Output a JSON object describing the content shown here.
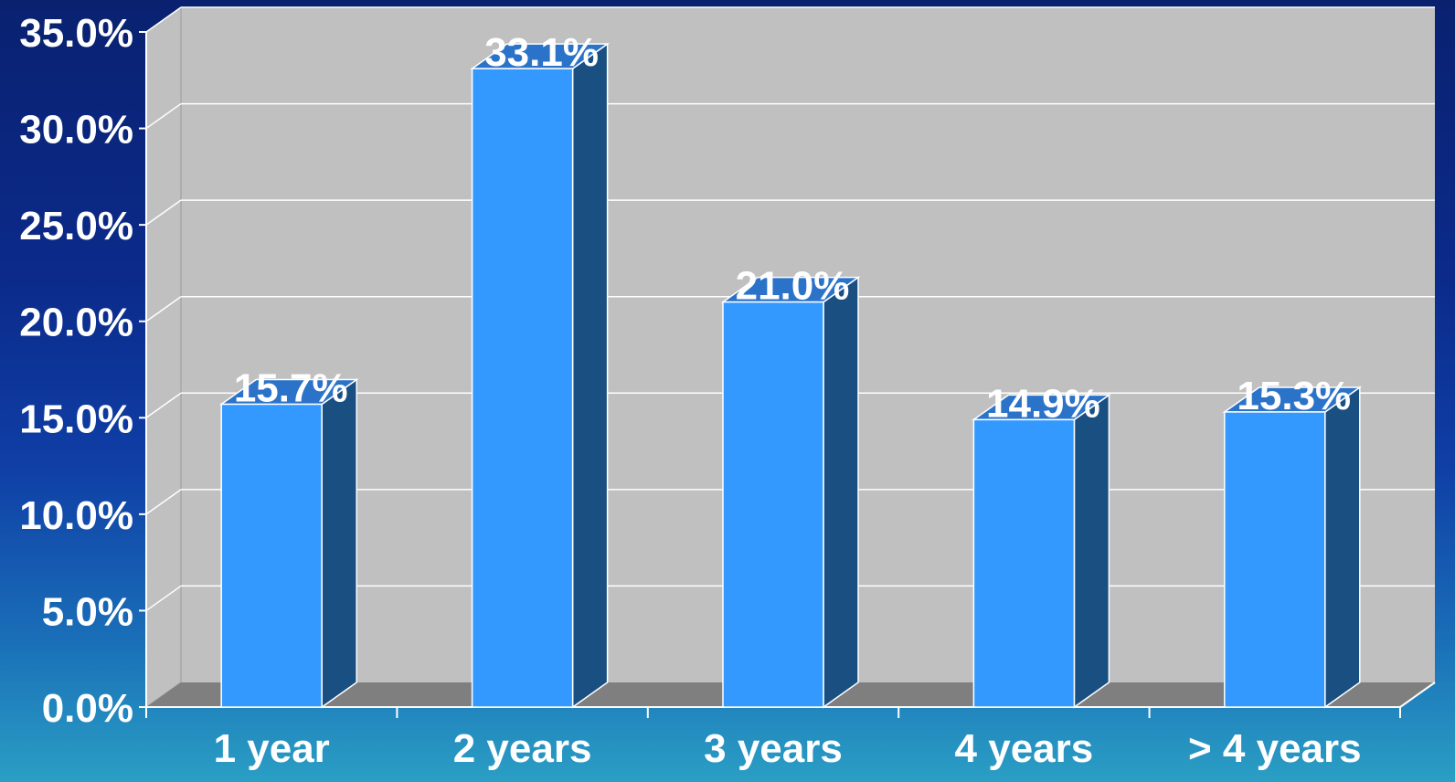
{
  "chart_data": {
    "type": "bar",
    "categories": [
      "1 year",
      "2 years",
      "3 years",
      "4 years",
      "> 4 years"
    ],
    "values": [
      15.7,
      33.1,
      21.0,
      14.9,
      15.3
    ],
    "value_labels": [
      "15.7%",
      "33.1%",
      "21.0%",
      "14.9%",
      "15.3%"
    ],
    "y_ticks": [
      "0.0%",
      "5.0%",
      "10.0%",
      "15.0%",
      "20.0%",
      "25.0%",
      "30.0%",
      "35.0%"
    ],
    "ylim": [
      0,
      35
    ],
    "grid": true,
    "style": "3d",
    "colors": {
      "bar_front": "#3399ff",
      "bar_side": "#1a4f82",
      "bar_top": "#2b73c9",
      "plot_background": "#c0c0c0",
      "floor": "#7f7f7f",
      "gridline": "#ffffff",
      "text": "#ffffff"
    }
  }
}
